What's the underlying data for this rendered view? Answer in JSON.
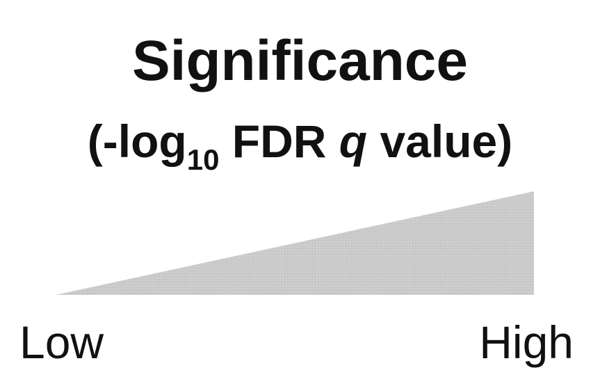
{
  "title": "Significance",
  "subtitle": {
    "open": "(-log",
    "subscript": "10",
    "middle": " FDR ",
    "italic": "q",
    "close": " value)"
  },
  "scale": {
    "low_label": "Low",
    "high_label": "High",
    "fill_color": "#c8c8c8"
  }
}
